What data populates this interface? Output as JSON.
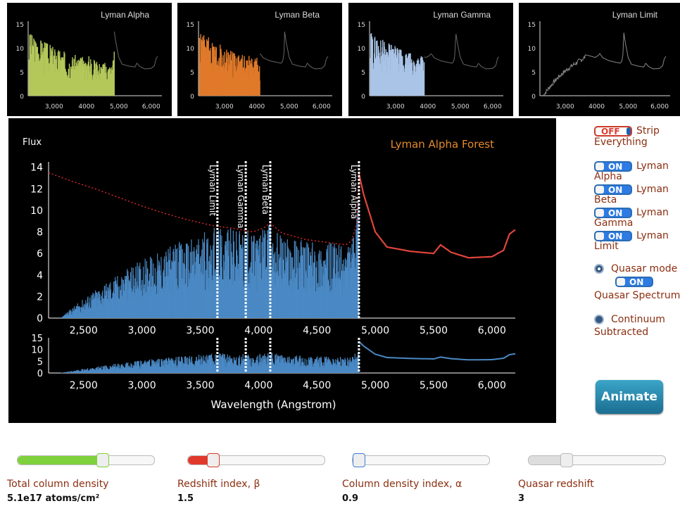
{
  "mini_panels": [
    {
      "title": "Lyman Alpha",
      "color": "#b3c85a",
      "cut": 4860
    },
    {
      "title": "Lyman Beta",
      "color": "#e07a2a",
      "cut": 4100
    },
    {
      "title": "Lyman Gamma",
      "color": "#a9c4e6",
      "cut": 3890
    },
    {
      "title": "Lyman Limit",
      "color": "#888888",
      "cut": 0
    }
  ],
  "mini_axes": {
    "yticks": [
      "15",
      "10",
      "5",
      "0"
    ],
    "xticks": [
      "3,000",
      "4000",
      "5,000",
      "6,000"
    ]
  },
  "main_chart": {
    "title": "Lyman Alpha Forest",
    "ylabel": "Flux",
    "xlabel": "Wavelength (Angstrom)",
    "yticks": [
      "14",
      "12",
      "10",
      "8",
      "6",
      "4",
      "2",
      "0"
    ],
    "xticks": [
      "2,500",
      "3,000",
      "3,500",
      "4,000",
      "4,500",
      "5,000",
      "5,500",
      "6,000"
    ],
    "lower_yticks": [
      "15",
      "10",
      "5",
      "0"
    ],
    "markers": [
      "Lyman Limit",
      "Lyman Gamma",
      "Lyman Beta",
      "Lyman Alpha"
    ]
  },
  "chart_data": {
    "type": "area",
    "title": "Lyman Alpha Forest",
    "ylabel": "Flux",
    "xlabel": "Wavelength (Angstrom)",
    "xlim": [
      2200,
      6200
    ],
    "ylim": [
      0,
      14.5
    ],
    "markers_x": [
      3647,
      3890,
      4100,
      4860
    ],
    "continuum": {
      "x": [
        2200,
        2400,
        2600,
        2800,
        3000,
        3200,
        3400,
        3600,
        3800,
        3950,
        4050,
        4100,
        4200,
        4400,
        4600,
        4750,
        4800,
        4840,
        4860,
        4900,
        5000,
        5100,
        5200,
        5300,
        5400,
        5500,
        5560,
        5650,
        5800,
        6000,
        6100,
        6150,
        6200
      ],
      "y": [
        13.5,
        12.7,
        12.0,
        11.2,
        10.4,
        9.7,
        9.1,
        8.6,
        8.3,
        8.0,
        8.4,
        8.8,
        7.9,
        7.3,
        7.0,
        6.8,
        7.2,
        8.8,
        13.4,
        11.5,
        8.0,
        6.6,
        6.4,
        6.2,
        6.1,
        6.0,
        6.8,
        6.1,
        5.6,
        5.7,
        6.3,
        7.8,
        8.2
      ]
    }
  },
  "sidebar": {
    "strip": {
      "state": "OFF",
      "label1": "Strip",
      "label2": "Everything"
    },
    "toggles": [
      {
        "state": "ON",
        "label1": "Lyman",
        "label2": "Alpha"
      },
      {
        "state": "ON",
        "label1": "Lyman",
        "label2": "Beta"
      },
      {
        "state": "ON",
        "label1": "Lyman",
        "label2": "Gamma"
      },
      {
        "state": "ON",
        "label1": "Lyman",
        "label2": "Limit"
      }
    ],
    "quasar_mode": "Quasar mode",
    "quasar_spectrum": {
      "state": "ON",
      "label": "Quasar Spectrum"
    },
    "continuum": "Continuum",
    "continuum2": "Subtracted",
    "animate": "Animate"
  },
  "sliders": [
    {
      "label": "Total column density",
      "value": "5.1e17 atoms/cm²",
      "level": 0.63,
      "color": "#7fd13b"
    },
    {
      "label": "Redshift index, β",
      "value": "1.5",
      "level": 0.15,
      "color": "#e0392b"
    },
    {
      "label": "Column density index, α",
      "value": "0.9",
      "level": 0.0,
      "color": "#3b7dd8"
    },
    {
      "label": "Quasar redshift",
      "value": "3",
      "level": 0.25,
      "color": "#dddddd"
    }
  ]
}
